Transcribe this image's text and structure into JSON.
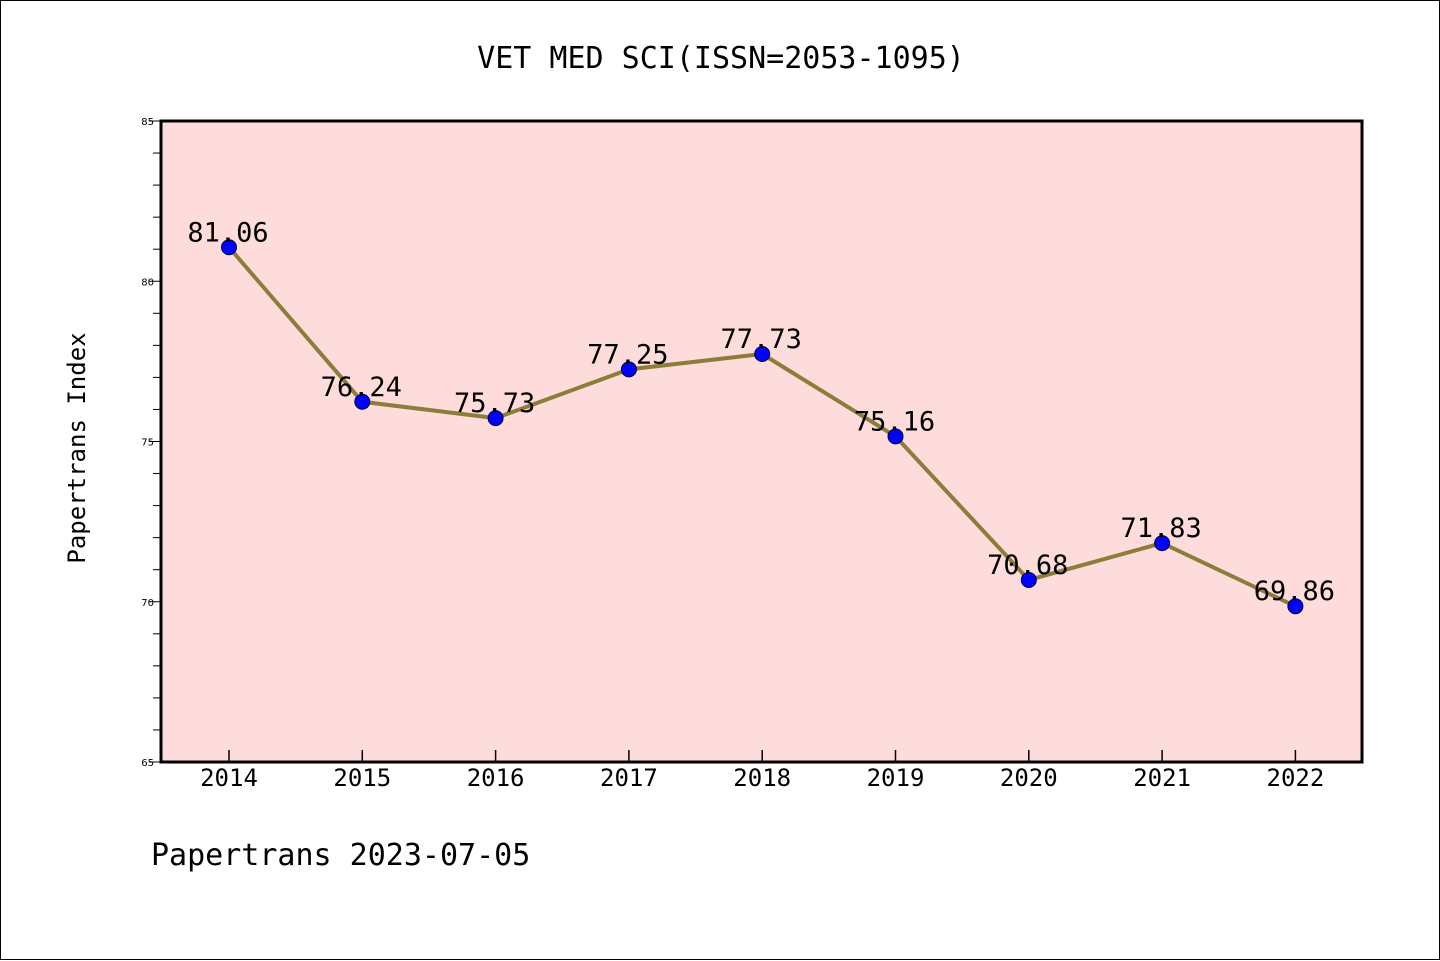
{
  "chart_data": {
    "type": "line",
    "title": "VET MED SCI(ISSN=2053-1095)",
    "xlabel": "",
    "ylabel": "Papertrans Index",
    "categories": [
      "2014",
      "2015",
      "2016",
      "2017",
      "2018",
      "2019",
      "2020",
      "2021",
      "2022"
    ],
    "series": [
      {
        "values": [
          81.06,
          76.24,
          75.73,
          77.25,
          77.73,
          75.16,
          70.68,
          71.83,
          69.86
        ],
        "line_color": "#8b7d3a",
        "marker_color": "#0000ff"
      }
    ],
    "data_labels": [
      "81.06",
      "76.24",
      "75.73",
      "77.25",
      "77.73",
      "75.16",
      "70.68",
      "71.83",
      "69.86"
    ],
    "ylim": [
      65,
      85
    ],
    "yticks": [
      65,
      70,
      75,
      80,
      85
    ],
    "ytick_labels": [
      "65",
      "70",
      "75",
      "80",
      "85"
    ],
    "plot_background": "#ffdcdc",
    "grid": false,
    "legend": "none"
  },
  "footer": {
    "text": "Papertrans 2023-07-05"
  }
}
